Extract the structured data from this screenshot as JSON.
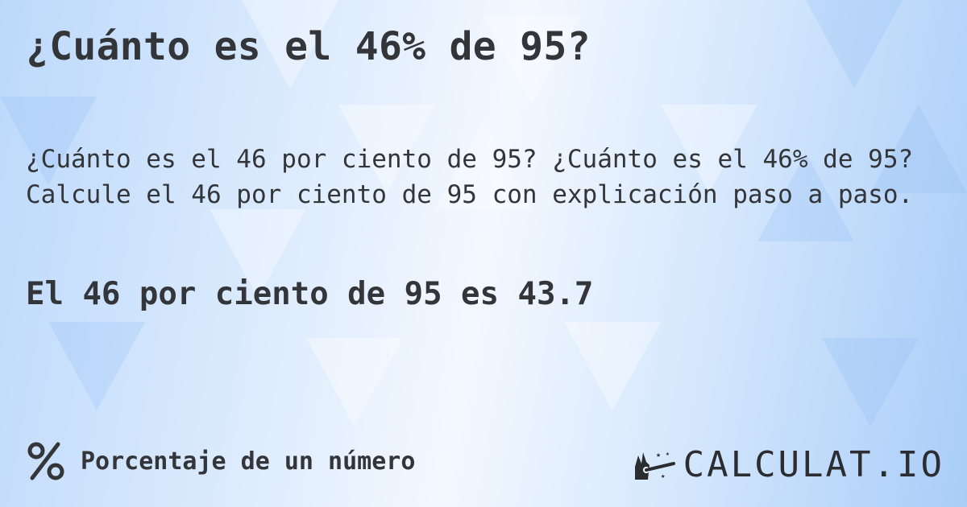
{
  "title": "¿Cuánto es el 46% de 95?",
  "description": {
    "line1": "¿Cuánto es el 46 por ciento de 95? ¿Cuánto es el 46% de 95?",
    "line2": "Calcule el 46 por ciento de 95 con explicación paso a paso."
  },
  "result": "El 46 por ciento de 95 es 43.7",
  "footer": {
    "icon": "percent-icon",
    "category": "Porcentaje de un número"
  },
  "logo": {
    "text": "CALCULAT.IO",
    "icon": "magic-hand-wand-icon"
  },
  "colors": {
    "text": "#333538",
    "background_light": "#f3f8ff",
    "background_blue": "#a9cdf8"
  }
}
